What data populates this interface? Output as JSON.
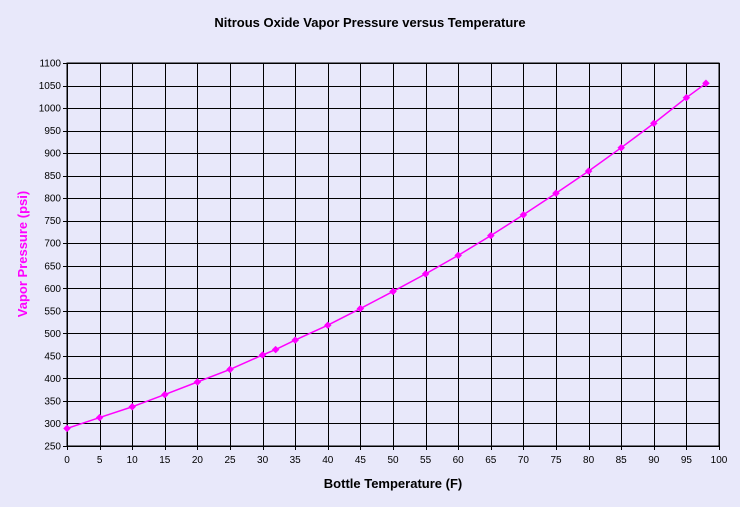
{
  "chart_data": {
    "type": "line",
    "title": "Nitrous Oxide Vapor Pressure versus Temperature",
    "xlabel": "Bottle Temperature (F)",
    "ylabel": "Vapor Pressure (psi)",
    "xlim": [
      0,
      100
    ],
    "ylim": [
      250,
      1100
    ],
    "x_ticks": [
      0,
      5,
      10,
      15,
      20,
      25,
      30,
      35,
      40,
      45,
      50,
      55,
      60,
      65,
      70,
      75,
      80,
      85,
      90,
      95,
      100
    ],
    "y_ticks": [
      250,
      300,
      350,
      400,
      450,
      500,
      550,
      600,
      650,
      700,
      750,
      800,
      850,
      900,
      950,
      1000,
      1050,
      1100
    ],
    "grid": true,
    "series": [
      {
        "x": [
          0,
          5,
          10,
          15,
          20,
          25,
          30,
          32,
          35,
          40,
          45,
          50,
          55,
          60,
          65,
          70,
          75,
          80,
          85,
          90,
          95,
          98
        ],
        "y": [
          289,
          313,
          337,
          364,
          392,
          420,
          452,
          464,
          485,
          518,
          555,
          593,
          632,
          673,
          717,
          763,
          811,
          860,
          912,
          966,
          1023,
          1055
        ]
      }
    ]
  },
  "colors": {
    "series": "#ff00ff",
    "ylabel": "#ff00ff",
    "grid": "#000000",
    "plot_bg": "#e8e8fa"
  }
}
